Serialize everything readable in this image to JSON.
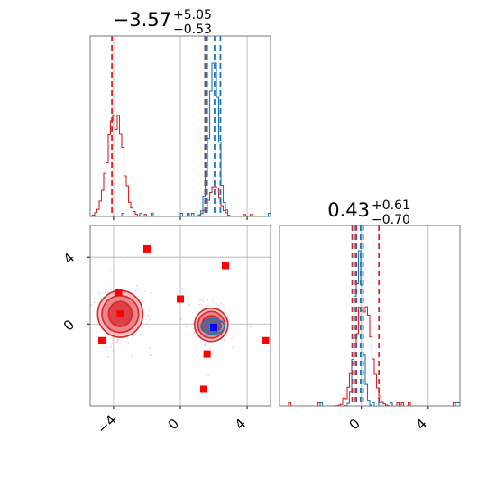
{
  "chart_data": {
    "type": "corner",
    "colors": {
      "red": "#d62728",
      "blue": "#1f77b4",
      "marker": "#ff0000",
      "truth": "#0000ff",
      "grid": "#b0b0b0"
    },
    "titles": [
      {
        "value": "−3.57",
        "plus": "+5.05",
        "minus": "−0.53"
      },
      {
        "value": "0.43",
        "plus": "+0.61",
        "minus": "−0.70"
      }
    ],
    "ranges": {
      "p1": [
        -5.4,
        5.4
      ],
      "p2": [
        -4.9,
        5.9
      ]
    },
    "ticks": {
      "p1": [
        -4,
        0,
        4
      ],
      "p2": [
        0,
        4
      ]
    },
    "tick_labels": {
      "p1": [
        "−4",
        "0",
        "4"
      ],
      "p2": [
        "0",
        "4"
      ],
      "left": [
        "4",
        "0"
      ]
    },
    "grid": true,
    "hist_p1": {
      "red_modes": [
        {
          "center": -3.9,
          "sigma": 0.45,
          "weight": 1.0
        },
        {
          "center": 2.05,
          "sigma": 0.35,
          "weight": 0.28
        }
      ],
      "blue_modes": [
        {
          "center": 2.0,
          "sigma": 0.28,
          "weight": 1.0
        }
      ],
      "red_quantiles": [
        -4.1,
        1.48,
        1.6
      ],
      "blue_quantiles": [
        1.55,
        2.05,
        2.4
      ]
    },
    "hist_p2": {
      "red_modes": [
        {
          "center": 0.1,
          "sigma": 0.45,
          "weight": 0.72
        }
      ],
      "blue_modes": [
        {
          "center": -0.15,
          "sigma": 0.22,
          "weight": 1.0
        }
      ],
      "red_quantiles": [
        -0.55,
        -0.3,
        1.05
      ],
      "blue_quantiles": [
        -0.35,
        -0.05,
        0.1
      ]
    },
    "joint": {
      "red_blobs": [
        {
          "center": [
            -3.6,
            0.6
          ],
          "widths": [
            [
              1.35,
              1.4
            ],
            [
              1.1,
              1.1
            ],
            [
              0.7,
              0.75
            ]
          ]
        },
        {
          "center": [
            1.85,
            -0.05
          ],
          "widths": [
            [
              1.0,
              1.0
            ],
            [
              0.8,
              0.8
            ],
            [
              0.55,
              0.55
            ]
          ]
        }
      ],
      "blue_blob": {
        "center": [
          1.95,
          -0.15
        ],
        "widths": [
          [
            0.7,
            0.45
          ],
          [
            0.5,
            0.32
          ],
          [
            0.3,
            0.2
          ]
        ]
      },
      "markers": [
        [
          -2.0,
          4.5
        ],
        [
          2.7,
          3.5
        ],
        [
          -3.7,
          1.9
        ],
        [
          0.0,
          1.5
        ],
        [
          -3.6,
          0.6
        ],
        [
          -4.7,
          -1.0
        ],
        [
          5.1,
          -1.0
        ],
        [
          1.6,
          -1.8
        ],
        [
          1.4,
          -3.9
        ]
      ],
      "truth_marker": [
        2.0,
        -0.2
      ]
    }
  }
}
